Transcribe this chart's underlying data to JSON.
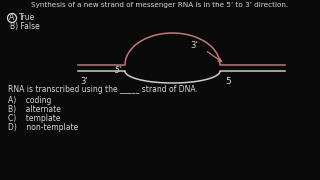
{
  "bg_color": "#0a0a0a",
  "text_color": "#d8d8d8",
  "pink_color": "#c07878",
  "white_color": "#cccccc",
  "title1": "Synthesis of a new strand of messenger RNA is in the 5’ to 3’ direction.",
  "ans1_b": "B) False",
  "title2": "RNA is transcribed using the _____ strand of DNA.",
  "ans2_a": "A)    coding",
  "ans2_b": "B)    alternate",
  "ans2_c": "C)    template",
  "ans2_d": "D)    non-template",
  "label_3prime_left": "3’",
  "label_5prime_cross": "5’",
  "label_3prime_right": "3’",
  "label_5prime_right": "5"
}
